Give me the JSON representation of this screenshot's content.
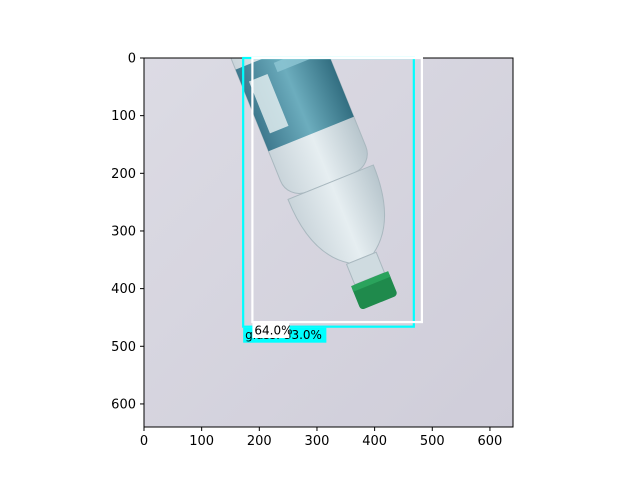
{
  "image": {
    "subject": "plastic-water-bottle",
    "background_color": "#d6d5df",
    "x_range": [
      0,
      640
    ],
    "y_range": [
      640,
      0
    ]
  },
  "axes": {
    "x_ticks": [
      "0",
      "100",
      "200",
      "300",
      "400",
      "500",
      "600"
    ],
    "y_ticks": [
      "0",
      "100",
      "200",
      "300",
      "400",
      "500",
      "600"
    ]
  },
  "detections": [
    {
      "label": "glass: 33.0%",
      "color": "#00ffff",
      "x_min": 172,
      "y_min": 0,
      "x_max": 468,
      "y_max": 466
    },
    {
      "label": "64.0%",
      "color": "#ffffff",
      "x_min": 188,
      "y_min": 0,
      "x_max": 482,
      "y_max": 458
    }
  ]
}
